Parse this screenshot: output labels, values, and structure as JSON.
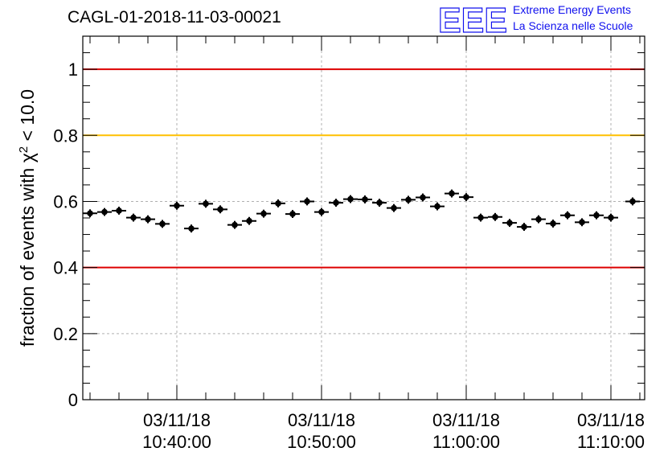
{
  "header": {
    "run_id": "CAGL-01-2018-11-03-00021"
  },
  "logo": {
    "mark": "EEE",
    "line1": "Extreme Energy Events",
    "line2": "La Scienza nelle Scuole",
    "color": "#1010ee"
  },
  "chart_data": {
    "type": "scatter",
    "title": "CAGL-01-2018-11-03-00021",
    "xlabel": "",
    "ylabel": "fraction of events with χ² < 10.0",
    "ylim": [
      0,
      1.1
    ],
    "xlim": [
      "2018-11-03 10:33:30",
      "2018-11-03 11:12:20"
    ],
    "x_ticks": [
      {
        "time": "2018-11-03 10:40:00",
        "date": "03/11/18",
        "clock": "10:40:00"
      },
      {
        "time": "2018-11-03 10:50:00",
        "date": "03/11/18",
        "clock": "10:50:00"
      },
      {
        "time": "2018-11-03 11:00:00",
        "date": "03/11/18",
        "clock": "11:00:00"
      },
      {
        "time": "2018-11-03 11:10:00",
        "date": "03/11/18",
        "clock": "11:10:00"
      }
    ],
    "y_ticks": [
      {
        "value": 0,
        "label": "0"
      },
      {
        "value": 0.2,
        "label": "0.2"
      },
      {
        "value": 0.4,
        "label": "0.4"
      },
      {
        "value": 0.6,
        "label": "0.6"
      },
      {
        "value": 0.8,
        "label": "0.8"
      },
      {
        "value": 1,
        "label": "1"
      }
    ],
    "grid": true,
    "reference_lines": [
      {
        "y": 1.0,
        "color": "#dd0000"
      },
      {
        "y": 0.8,
        "color": "#ffc000"
      },
      {
        "y": 0.4,
        "color": "#dd0000"
      }
    ],
    "x_error_minutes": 0.5,
    "series": [
      {
        "color": "#000000",
        "points": [
          {
            "x": "2018-11-03 10:34:00",
            "y": 0.564,
            "err": 0.012
          },
          {
            "x": "2018-11-03 10:35:00",
            "y": 0.568,
            "err": 0.012
          },
          {
            "x": "2018-11-03 10:36:00",
            "y": 0.572,
            "err": 0.012
          },
          {
            "x": "2018-11-03 10:37:00",
            "y": 0.551,
            "err": 0.012
          },
          {
            "x": "2018-11-03 10:38:00",
            "y": 0.546,
            "err": 0.012
          },
          {
            "x": "2018-11-03 10:39:00",
            "y": 0.532,
            "err": 0.012
          },
          {
            "x": "2018-11-03 10:40:00",
            "y": 0.587,
            "err": 0.012
          },
          {
            "x": "2018-11-03 10:41:00",
            "y": 0.518,
            "err": 0.012
          },
          {
            "x": "2018-11-03 10:42:00",
            "y": 0.593,
            "err": 0.012
          },
          {
            "x": "2018-11-03 10:43:00",
            "y": 0.576,
            "err": 0.012
          },
          {
            "x": "2018-11-03 10:44:00",
            "y": 0.529,
            "err": 0.012
          },
          {
            "x": "2018-11-03 10:45:00",
            "y": 0.541,
            "err": 0.012
          },
          {
            "x": "2018-11-03 10:46:00",
            "y": 0.563,
            "err": 0.012
          },
          {
            "x": "2018-11-03 10:47:00",
            "y": 0.594,
            "err": 0.012
          },
          {
            "x": "2018-11-03 10:48:00",
            "y": 0.562,
            "err": 0.012
          },
          {
            "x": "2018-11-03 10:49:00",
            "y": 0.6,
            "err": 0.012
          },
          {
            "x": "2018-11-03 10:50:00",
            "y": 0.568,
            "err": 0.012
          },
          {
            "x": "2018-11-03 10:51:00",
            "y": 0.596,
            "err": 0.012
          },
          {
            "x": "2018-11-03 10:52:00",
            "y": 0.607,
            "err": 0.012
          },
          {
            "x": "2018-11-03 10:53:00",
            "y": 0.606,
            "err": 0.012
          },
          {
            "x": "2018-11-03 10:54:00",
            "y": 0.596,
            "err": 0.012
          },
          {
            "x": "2018-11-03 10:55:00",
            "y": 0.58,
            "err": 0.012
          },
          {
            "x": "2018-11-03 10:56:00",
            "y": 0.605,
            "err": 0.012
          },
          {
            "x": "2018-11-03 10:57:00",
            "y": 0.612,
            "err": 0.012
          },
          {
            "x": "2018-11-03 10:58:00",
            "y": 0.585,
            "err": 0.012
          },
          {
            "x": "2018-11-03 10:59:00",
            "y": 0.624,
            "err": 0.012
          },
          {
            "x": "2018-11-03 11:00:00",
            "y": 0.613,
            "err": 0.012
          },
          {
            "x": "2018-11-03 11:01:00",
            "y": 0.551,
            "err": 0.012
          },
          {
            "x": "2018-11-03 11:02:00",
            "y": 0.553,
            "err": 0.012
          },
          {
            "x": "2018-11-03 11:03:00",
            "y": 0.535,
            "err": 0.012
          },
          {
            "x": "2018-11-03 11:04:00",
            "y": 0.523,
            "err": 0.012
          },
          {
            "x": "2018-11-03 11:05:00",
            "y": 0.546,
            "err": 0.012
          },
          {
            "x": "2018-11-03 11:06:00",
            "y": 0.533,
            "err": 0.012
          },
          {
            "x": "2018-11-03 11:07:00",
            "y": 0.558,
            "err": 0.012
          },
          {
            "x": "2018-11-03 11:08:00",
            "y": 0.537,
            "err": 0.012
          },
          {
            "x": "2018-11-03 11:09:00",
            "y": 0.558,
            "err": 0.012
          },
          {
            "x": "2018-11-03 11:10:00",
            "y": 0.551,
            "err": 0.012
          },
          {
            "x": "2018-11-03 11:11:30",
            "y": 0.6,
            "err": 0.012
          }
        ]
      }
    ]
  }
}
